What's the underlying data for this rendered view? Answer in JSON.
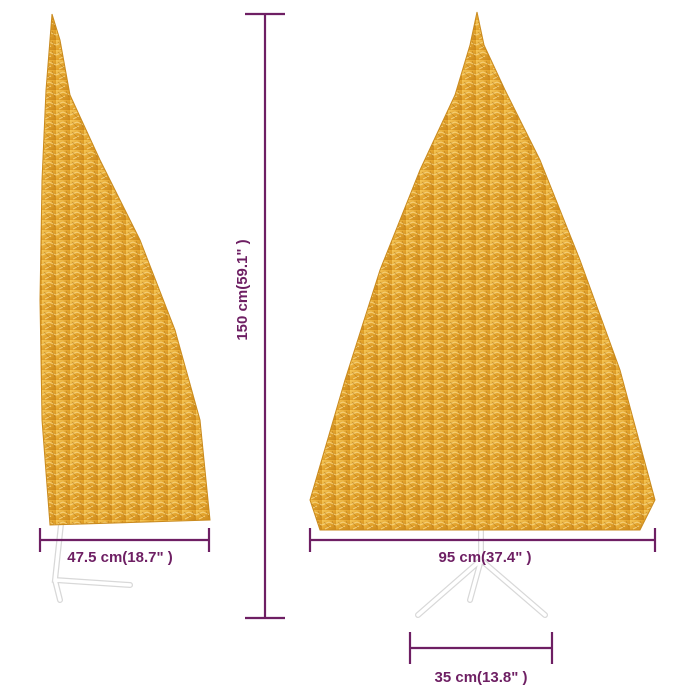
{
  "dimensions": {
    "height": "150 cm(59.1\" )",
    "side_depth": "47.5 cm(18.7\" )",
    "front_width": "95 cm(37.4\" )",
    "stand_width": "35 cm(13.8\" )"
  }
}
